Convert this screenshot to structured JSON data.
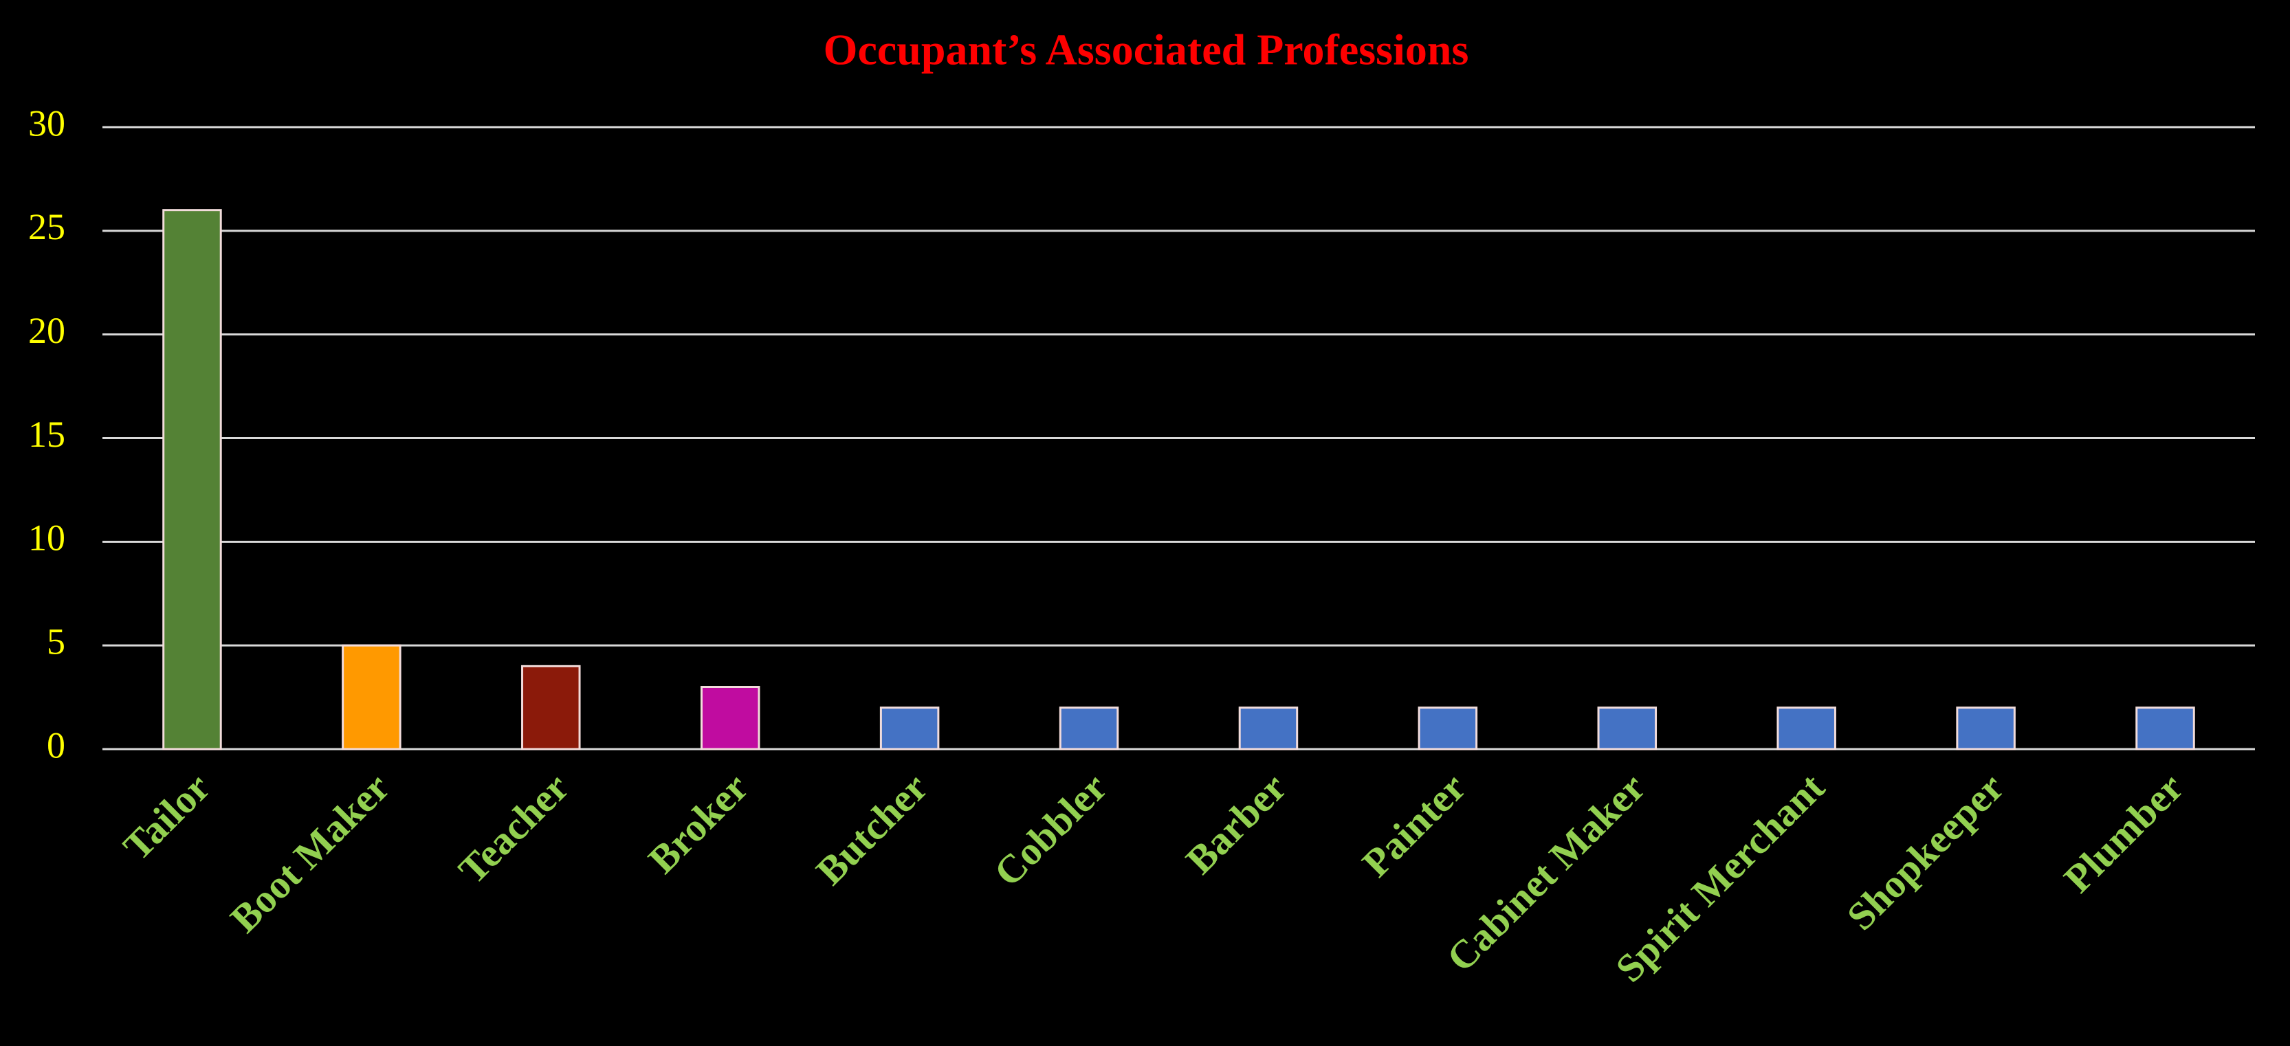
{
  "chart_data": {
    "type": "bar",
    "title": "Occupant’s Associated Professions",
    "categories": [
      "Tailor",
      "Boot Maker",
      "Teacher",
      "Broker",
      "Butcher",
      "Cobbler",
      "Barber",
      "Painter",
      "Cabinet Maker",
      "Spirit Merchant",
      "Shopkeeper",
      "Plumber"
    ],
    "values": [
      26,
      5,
      4,
      3,
      2,
      2,
      2,
      2,
      2,
      2,
      2,
      2
    ],
    "colors": [
      "#548235",
      "#ff9900",
      "#8b1a0a",
      "#c00ca0",
      "#4472c4",
      "#4472c4",
      "#4472c4",
      "#4472c4",
      "#4472c4",
      "#4472c4",
      "#4472c4",
      "#4472c4"
    ],
    "ylim": [
      0,
      30
    ],
    "yticks": [
      0,
      5,
      10,
      15,
      20,
      25,
      30
    ],
    "grid": true
  }
}
